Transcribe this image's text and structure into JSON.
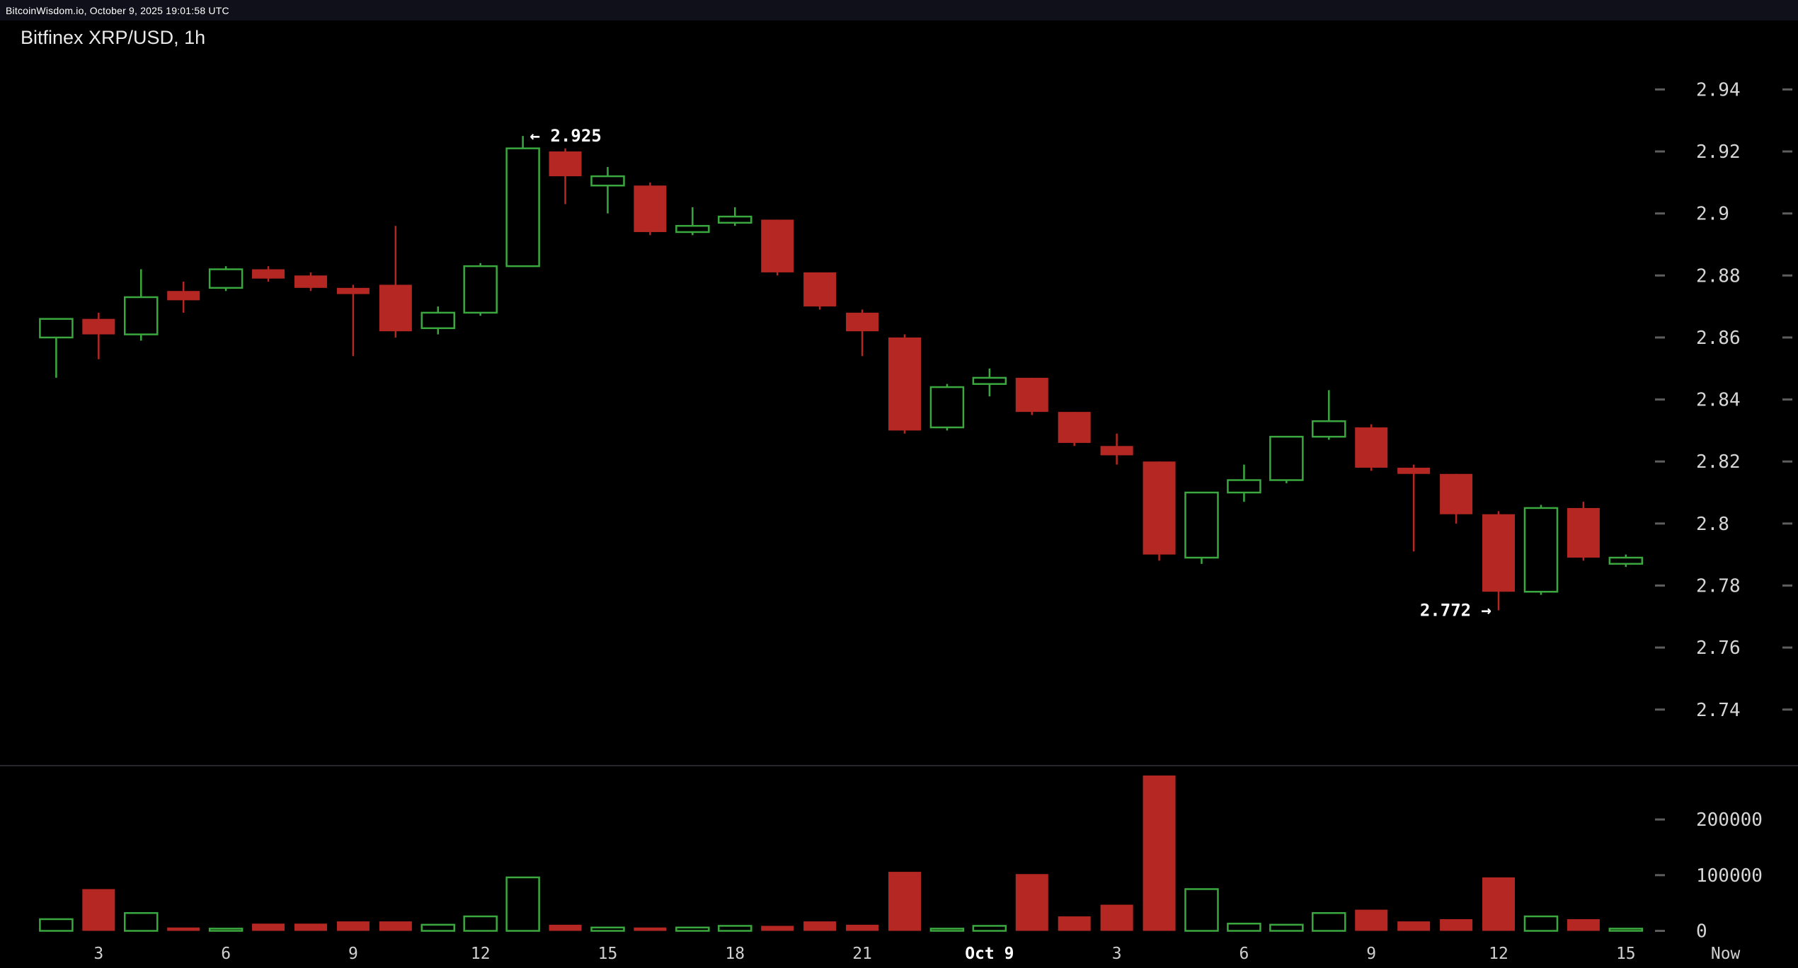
{
  "topbar": {
    "text": "BitcoinWisdom.io, October 9, 2025 19:01:58 UTC"
  },
  "header": {
    "title": "Bitfinex XRP/USD, 1h"
  },
  "colors": {
    "background": "#000000",
    "up": "#3aa83e",
    "down": "#b52722",
    "axis_text": "#d6d6d6",
    "time_text": "#cfcfcf",
    "bold_time_text": "#ffffff",
    "annotation_text": "#ffffff",
    "tick_dash": "#5d5d5d",
    "separator": "#26262b"
  },
  "chart_data": {
    "type": "candlestick_with_volume",
    "title": "Bitfinex XRP/USD, 1h",
    "grid": false,
    "legend": null,
    "ylim": [
      2.722,
      2.955
    ],
    "volume_ylim": [
      0,
      306000
    ],
    "price_axis": {
      "ticks": [
        {
          "label": "2.94",
          "value": 2.94
        },
        {
          "label": "2.92",
          "value": 2.92
        },
        {
          "label": "2.9",
          "value": 2.9
        },
        {
          "label": "2.88",
          "value": 2.88
        },
        {
          "label": "2.86",
          "value": 2.86
        },
        {
          "label": "2.84",
          "value": 2.84
        },
        {
          "label": "2.82",
          "value": 2.82
        },
        {
          "label": "2.8",
          "value": 2.8
        },
        {
          "label": "2.78",
          "value": 2.78
        },
        {
          "label": "2.76",
          "value": 2.76
        },
        {
          "label": "2.74",
          "value": 2.74
        }
      ]
    },
    "volume_axis": {
      "ticks": [
        {
          "label": "200000",
          "value": 200000
        },
        {
          "label": "100000",
          "value": 100000
        },
        {
          "label": "0",
          "value": 0
        }
      ]
    },
    "x_axis": {
      "ticks": [
        {
          "label": "3",
          "index": 1
        },
        {
          "label": "6",
          "index": 4
        },
        {
          "label": "9",
          "index": 7
        },
        {
          "label": "12",
          "index": 10
        },
        {
          "label": "15",
          "index": 13
        },
        {
          "label": "18",
          "index": 16
        },
        {
          "label": "21",
          "index": 19
        },
        {
          "label": "Oct 9",
          "index": 22,
          "bold": true
        },
        {
          "label": "3",
          "index": 25
        },
        {
          "label": "6",
          "index": 28
        },
        {
          "label": "9",
          "index": 31
        },
        {
          "label": "12",
          "index": 34
        },
        {
          "label": "15",
          "index": 37
        },
        {
          "label": "Now",
          "index": 39.35
        }
      ]
    },
    "annotations": [
      {
        "text": "← 2.925",
        "index": 11,
        "price": 2.925,
        "side": "right"
      },
      {
        "text": "2.772 →",
        "index": 34,
        "price": 2.772,
        "side": "left"
      }
    ],
    "candles": [
      {
        "t": "2",
        "o": 2.86,
        "h": 2.866,
        "l": 2.847,
        "c": 2.866,
        "v": 21000
      },
      {
        "t": "3",
        "o": 2.866,
        "h": 2.868,
        "l": 2.853,
        "c": 2.861,
        "v": 75000
      },
      {
        "t": "4",
        "o": 2.861,
        "h": 2.882,
        "l": 2.859,
        "c": 2.873,
        "v": 32000
      },
      {
        "t": "5",
        "o": 2.875,
        "h": 2.878,
        "l": 2.868,
        "c": 2.872,
        "v": 6000
      },
      {
        "t": "6",
        "o": 2.876,
        "h": 2.883,
        "l": 2.875,
        "c": 2.882,
        "v": 4000
      },
      {
        "t": "7",
        "o": 2.882,
        "h": 2.883,
        "l": 2.878,
        "c": 2.879,
        "v": 13000
      },
      {
        "t": "8",
        "o": 2.88,
        "h": 2.881,
        "l": 2.875,
        "c": 2.876,
        "v": 13000
      },
      {
        "t": "9",
        "o": 2.876,
        "h": 2.877,
        "l": 2.854,
        "c": 2.874,
        "v": 17000
      },
      {
        "t": "10",
        "o": 2.877,
        "h": 2.896,
        "l": 2.86,
        "c": 2.862,
        "v": 17000
      },
      {
        "t": "11",
        "o": 2.863,
        "h": 2.87,
        "l": 2.861,
        "c": 2.868,
        "v": 11000
      },
      {
        "t": "12",
        "o": 2.868,
        "h": 2.884,
        "l": 2.867,
        "c": 2.883,
        "v": 26000
      },
      {
        "t": "13",
        "o": 2.883,
        "h": 2.925,
        "l": 2.883,
        "c": 2.921,
        "v": 96000
      },
      {
        "t": "14",
        "o": 2.92,
        "h": 2.921,
        "l": 2.903,
        "c": 2.912,
        "v": 11000
      },
      {
        "t": "15",
        "o": 2.909,
        "h": 2.915,
        "l": 2.9,
        "c": 2.912,
        "v": 6000
      },
      {
        "t": "16",
        "o": 2.909,
        "h": 2.91,
        "l": 2.893,
        "c": 2.894,
        "v": 6000
      },
      {
        "t": "17",
        "o": 2.894,
        "h": 2.902,
        "l": 2.893,
        "c": 2.896,
        "v": 6000
      },
      {
        "t": "18",
        "o": 2.897,
        "h": 2.902,
        "l": 2.896,
        "c": 2.899,
        "v": 9000
      },
      {
        "t": "19",
        "o": 2.898,
        "h": 2.898,
        "l": 2.88,
        "c": 2.881,
        "v": 9000
      },
      {
        "t": "20",
        "o": 2.881,
        "h": 2.881,
        "l": 2.869,
        "c": 2.87,
        "v": 17000
      },
      {
        "t": "21",
        "o": 2.868,
        "h": 2.869,
        "l": 2.854,
        "c": 2.862,
        "v": 11000
      },
      {
        "t": "22",
        "o": 2.86,
        "h": 2.861,
        "l": 2.829,
        "c": 2.83,
        "v": 106000
      },
      {
        "t": "23",
        "o": 2.831,
        "h": 2.845,
        "l": 2.83,
        "c": 2.844,
        "v": 4000
      },
      {
        "t": "Oct 9",
        "o": 2.845,
        "h": 2.85,
        "l": 2.841,
        "c": 2.847,
        "v": 9000
      },
      {
        "t": "1",
        "o": 2.847,
        "h": 2.847,
        "l": 2.835,
        "c": 2.836,
        "v": 102000
      },
      {
        "t": "2",
        "o": 2.836,
        "h": 2.836,
        "l": 2.825,
        "c": 2.826,
        "v": 26000
      },
      {
        "t": "3",
        "o": 2.825,
        "h": 2.829,
        "l": 2.819,
        "c": 2.822,
        "v": 47000
      },
      {
        "t": "4",
        "o": 2.82,
        "h": 2.82,
        "l": 2.788,
        "c": 2.79,
        "v": 279000
      },
      {
        "t": "5",
        "o": 2.789,
        "h": 2.81,
        "l": 2.787,
        "c": 2.81,
        "v": 75000
      },
      {
        "t": "6",
        "o": 2.81,
        "h": 2.819,
        "l": 2.807,
        "c": 2.814,
        "v": 13000
      },
      {
        "t": "7",
        "o": 2.814,
        "h": 2.828,
        "l": 2.813,
        "c": 2.828,
        "v": 11000
      },
      {
        "t": "8",
        "o": 2.828,
        "h": 2.843,
        "l": 2.827,
        "c": 2.833,
        "v": 32000
      },
      {
        "t": "9",
        "o": 2.831,
        "h": 2.832,
        "l": 2.817,
        "c": 2.818,
        "v": 38000
      },
      {
        "t": "10",
        "o": 2.818,
        "h": 2.819,
        "l": 2.791,
        "c": 2.816,
        "v": 17000
      },
      {
        "t": "11",
        "o": 2.816,
        "h": 2.816,
        "l": 2.8,
        "c": 2.803,
        "v": 21000
      },
      {
        "t": "12",
        "o": 2.803,
        "h": 2.804,
        "l": 2.772,
        "c": 2.778,
        "v": 96000
      },
      {
        "t": "13",
        "o": 2.778,
        "h": 2.806,
        "l": 2.777,
        "c": 2.805,
        "v": 26000
      },
      {
        "t": "14",
        "o": 2.805,
        "h": 2.807,
        "l": 2.788,
        "c": 2.789,
        "v": 21000
      },
      {
        "t": "15",
        "o": 2.787,
        "h": 2.79,
        "l": 2.786,
        "c": 2.789,
        "v": 4000
      }
    ]
  }
}
